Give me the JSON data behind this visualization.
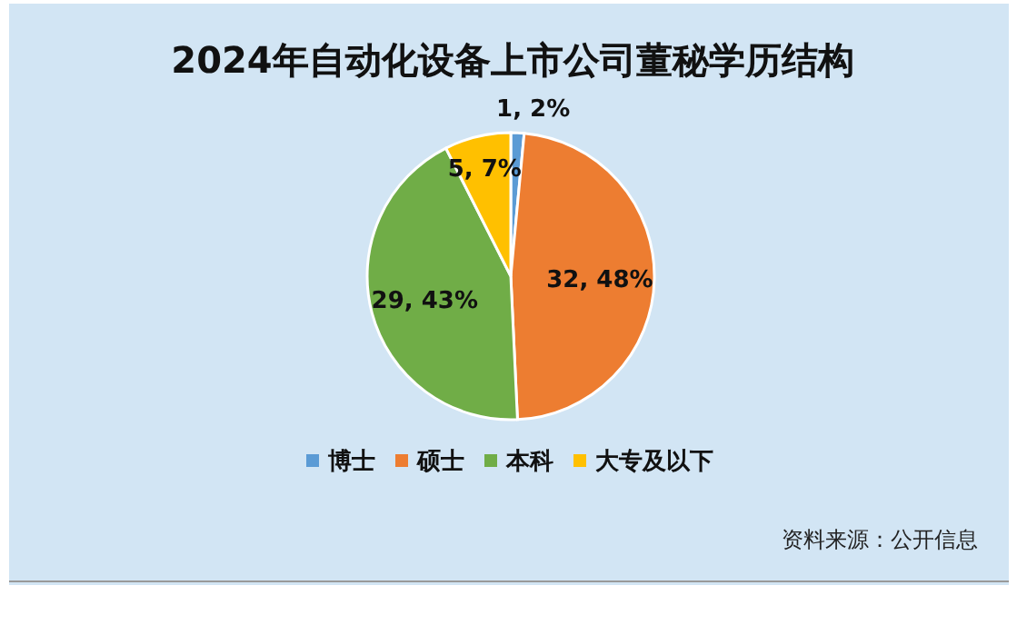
{
  "chart_data": {
    "type": "pie",
    "title": "2024年自动化设备上市公司董秘学历结构",
    "categories": [
      "博士",
      "硕士",
      "本科",
      "大专及以下"
    ],
    "values": [
      1,
      32,
      29,
      5
    ],
    "colors": [
      "#5b9bd5",
      "#ed7d31",
      "#70ad47",
      "#ffc000"
    ],
    "value_labels": [
      "1, 2%",
      "32, 48%",
      "29, 43%",
      "5, 7%"
    ],
    "legend": "bottom",
    "annotations": [
      "资料来源：公开信息"
    ]
  }
}
